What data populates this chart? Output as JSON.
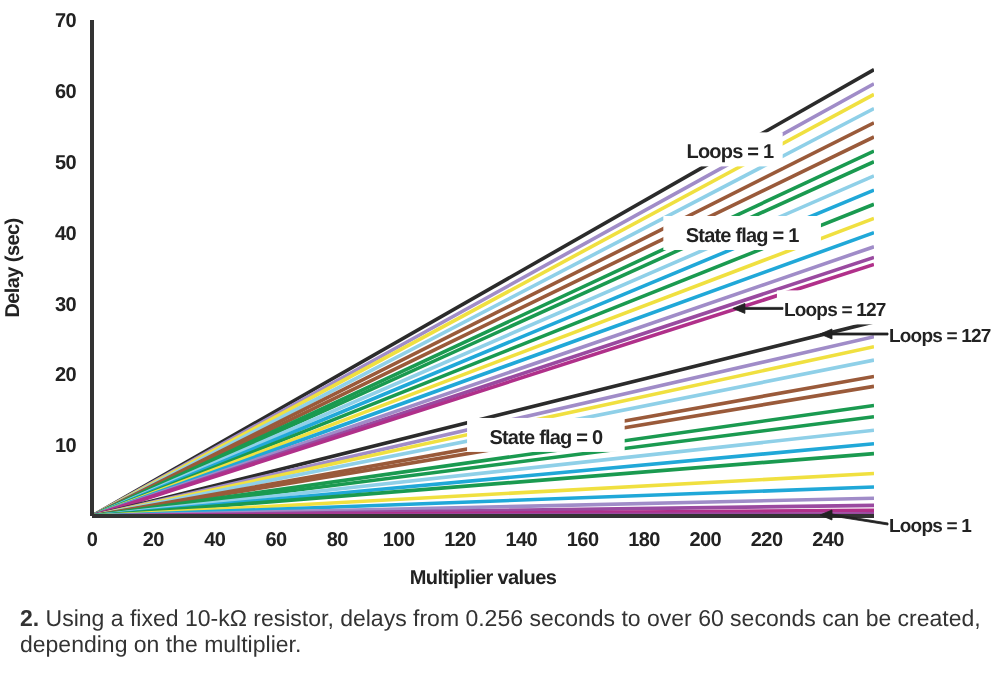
{
  "chart_data": {
    "type": "line",
    "xlabel": "Multiplier values",
    "ylabel": "Delay (sec)",
    "x": [
      0,
      255
    ],
    "xlim": [
      0,
      255
    ],
    "xticks": [
      0,
      20,
      40,
      60,
      80,
      100,
      120,
      140,
      160,
      180,
      200,
      220,
      240
    ],
    "ylim": [
      0,
      70
    ],
    "yticks": [
      10,
      20,
      30,
      40,
      50,
      60,
      70
    ],
    "grid": false,
    "legend": false,
    "marker": "none",
    "line_style": "solid",
    "series": [
      {
        "color": "#2b2b2b",
        "values": [
          0,
          63
        ]
      },
      {
        "color": "#a08cc8",
        "values": [
          0,
          61
        ]
      },
      {
        "color": "#f0e040",
        "values": [
          0,
          59.5
        ]
      },
      {
        "color": "#8fd0e8",
        "values": [
          0,
          57.5
        ]
      },
      {
        "color": "#9a5a3a",
        "values": [
          0,
          55.5
        ]
      },
      {
        "color": "#9a5a3a",
        "values": [
          0,
          53.5
        ]
      },
      {
        "color": "#1a9a50",
        "values": [
          0,
          51.5
        ]
      },
      {
        "color": "#1a9a50",
        "values": [
          0,
          50
        ]
      },
      {
        "color": "#8fd0e8",
        "values": [
          0,
          48
        ]
      },
      {
        "color": "#20a8d8",
        "values": [
          0,
          46
        ]
      },
      {
        "color": "#1a9a50",
        "values": [
          0,
          44
        ]
      },
      {
        "color": "#f0e040",
        "values": [
          0,
          42
        ]
      },
      {
        "color": "#20a8d8",
        "values": [
          0,
          40
        ]
      },
      {
        "color": "#a08cc8",
        "values": [
          0,
          38
        ]
      },
      {
        "color": "#9a4aa0",
        "values": [
          0,
          36.5
        ]
      },
      {
        "color": "#b0308a",
        "values": [
          0,
          35.5
        ]
      },
      {
        "color": "#2b2b2b",
        "values": [
          0,
          27.4
        ]
      },
      {
        "color": "#a08cc8",
        "values": [
          0,
          25.3
        ]
      },
      {
        "color": "#f0e040",
        "values": [
          0,
          23.9
        ]
      },
      {
        "color": "#8fd0e8",
        "values": [
          0,
          22
        ]
      },
      {
        "color": "#9a5a3a",
        "values": [
          0,
          19.7
        ]
      },
      {
        "color": "#9a5a3a",
        "values": [
          0,
          18.3
        ]
      },
      {
        "color": "#1a9a50",
        "values": [
          0,
          15.6
        ]
      },
      {
        "color": "#1a9a50",
        "values": [
          0,
          14
        ]
      },
      {
        "color": "#8fd0e8",
        "values": [
          0,
          12.1
        ]
      },
      {
        "color": "#20a8d8",
        "values": [
          0,
          10.2
        ]
      },
      {
        "color": "#1a9a50",
        "values": [
          0,
          8.8
        ]
      },
      {
        "color": "#f0e040",
        "values": [
          0,
          6
        ]
      },
      {
        "color": "#20a8d8",
        "values": [
          0,
          4.1
        ]
      },
      {
        "color": "#a08cc8",
        "values": [
          0,
          2.5
        ]
      },
      {
        "color": "#9a4aa0",
        "values": [
          0,
          1.5
        ]
      },
      {
        "color": "#b0308a",
        "values": [
          0,
          0.8
        ]
      },
      {
        "color": "#9a4aa0",
        "values": [
          0,
          0.3
        ]
      }
    ],
    "annotations": [
      {
        "text": "Loops = 1",
        "x": 208,
        "y": 51.6
      },
      {
        "text": "State flag = 1",
        "x": 212,
        "y": 39.8
      },
      {
        "text": "Loops = 127",
        "x": 209,
        "y": 29.3
      },
      {
        "text": "State flag = 0",
        "x": 148,
        "y": 11.3
      },
      "Loops = 127",
      "Loops = 1",
      "2. Using a fixed 10-kΩ resistor, delays from 0.256 seconds to over 60 seconds can be created, depending on the multiplier."
    ]
  }
}
